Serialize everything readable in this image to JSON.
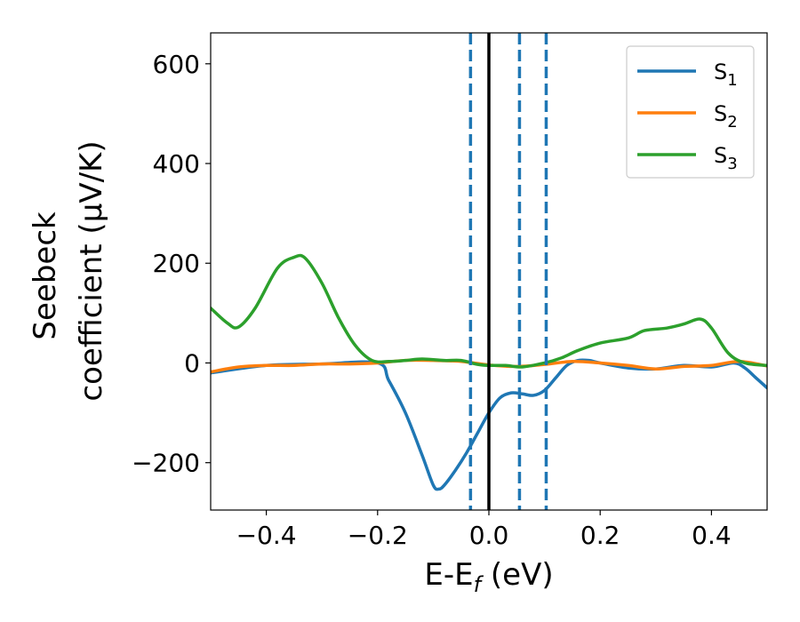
{
  "chart_data": {
    "type": "line",
    "xlabel": {
      "main": "E-E",
      "sub": "f",
      "tail": " (eV)"
    },
    "ylabel": {
      "line1": "Seebeck",
      "line2": "coefficient  (μV/K)"
    },
    "xlim": [
      -0.5,
      0.5
    ],
    "ylim": [
      -295,
      662
    ],
    "xticks": [
      -0.4,
      -0.2,
      0.0,
      0.2,
      0.4
    ],
    "xtick_labels": [
      "−0.4",
      "−0.2",
      "0.0",
      "0.2",
      "0.4"
    ],
    "yticks": [
      -200,
      0,
      200,
      400,
      600
    ],
    "ytick_labels": [
      "−200",
      "0",
      "200",
      "400",
      "600"
    ],
    "grid": false,
    "legend_position": "top-right",
    "vlines": [
      {
        "x": 0.0,
        "style": "solid",
        "color": "#000000"
      },
      {
        "x": -0.033,
        "style": "dashed",
        "color": "#1f77b4"
      },
      {
        "x": 0.055,
        "style": "dashed",
        "color": "#1f77b4"
      },
      {
        "x": 0.103,
        "style": "dashed",
        "color": "#1f77b4"
      }
    ],
    "series": [
      {
        "name": "S",
        "sub": "1",
        "color": "#1f77b4",
        "x": [
          -0.5,
          -0.4,
          -0.3,
          -0.2,
          -0.18,
          -0.15,
          -0.12,
          -0.1,
          -0.09,
          -0.08,
          -0.06,
          -0.04,
          -0.02,
          0.0,
          0.02,
          0.04,
          0.06,
          0.08,
          0.1,
          0.12,
          0.14,
          0.16,
          0.18,
          0.2,
          0.25,
          0.3,
          0.35,
          0.4,
          0.44,
          0.46,
          0.48,
          0.5
        ],
        "y": [
          -20,
          -5,
          -2,
          0,
          -35,
          -100,
          -185,
          -245,
          -253,
          -245,
          -215,
          -180,
          -140,
          -100,
          -70,
          -60,
          -62,
          -65,
          -55,
          -30,
          -5,
          5,
          5,
          0,
          -10,
          -12,
          -5,
          -8,
          0,
          -10,
          -30,
          -50
        ]
      },
      {
        "name": "S",
        "sub": "2",
        "color": "#ff7f0e",
        "x": [
          -0.5,
          -0.45,
          -0.4,
          -0.35,
          -0.3,
          -0.25,
          -0.2,
          -0.15,
          -0.1,
          -0.05,
          0.0,
          0.05,
          0.1,
          0.15,
          0.2,
          0.25,
          0.3,
          0.35,
          0.4,
          0.45,
          0.5
        ],
        "y": [
          -18,
          -8,
          -5,
          -5,
          -2,
          -2,
          0,
          5,
          5,
          3,
          -4,
          -7,
          -3,
          3,
          0,
          -5,
          -12,
          -7,
          -5,
          3,
          -6
        ]
      },
      {
        "name": "S",
        "sub": "3",
        "color": "#2ca02c",
        "x": [
          -0.5,
          -0.47,
          -0.45,
          -0.42,
          -0.38,
          -0.35,
          -0.33,
          -0.3,
          -0.27,
          -0.24,
          -0.21,
          -0.18,
          -0.15,
          -0.12,
          -0.08,
          -0.05,
          -0.02,
          0.0,
          0.03,
          0.06,
          0.1,
          0.13,
          0.16,
          0.2,
          0.25,
          0.28,
          0.32,
          0.35,
          0.38,
          0.4,
          0.43,
          0.46,
          0.5
        ],
        "y": [
          110,
          80,
          72,
          110,
          190,
          212,
          210,
          160,
          90,
          35,
          5,
          3,
          5,
          8,
          5,
          5,
          -3,
          -5,
          -5,
          -8,
          0,
          10,
          25,
          40,
          50,
          65,
          70,
          78,
          88,
          70,
          20,
          0,
          -5
        ]
      }
    ]
  }
}
